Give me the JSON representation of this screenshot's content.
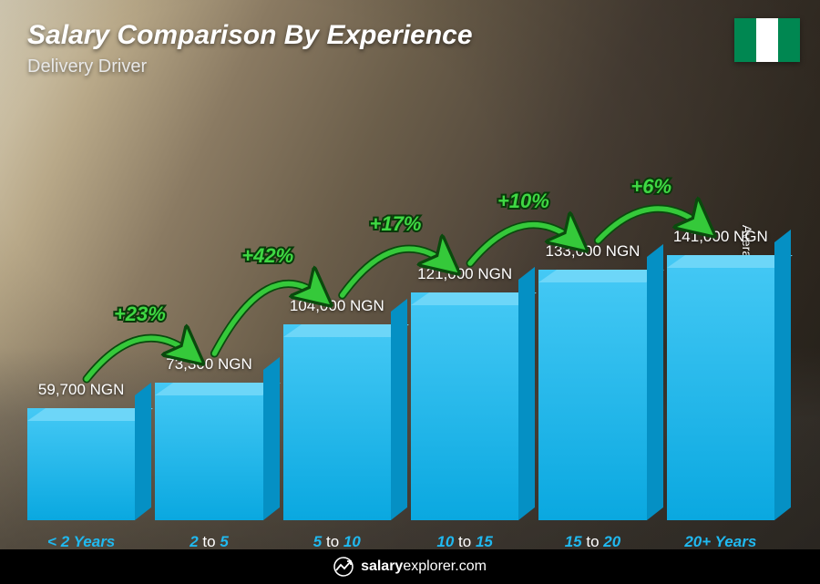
{
  "title": "Salary Comparison By Experience",
  "subtitle": "Delivery Driver",
  "yaxis_label": "Average Monthly Salary",
  "flag_colors": [
    "#008751",
    "#ffffff",
    "#008751"
  ],
  "currency": "NGN",
  "max_value": 150000,
  "bar_colors": {
    "front_top": "#45c9f5",
    "front_bottom": "#0aa8e0",
    "top": "#6dd6f8",
    "side": "#0590c4"
  },
  "arc_color": "#35c93a",
  "arc_stroke_dark": "#0a4a0d",
  "pct_color": "#3fd843",
  "xlabel_color": "#20b9f0",
  "bars": [
    {
      "label_pre": "< 2",
      "label_post": "Years",
      "value": 59700,
      "value_label": "59,700 NGN",
      "pct": null
    },
    {
      "label_pre": "2",
      "label_mid": "to",
      "label_post": "5",
      "value": 73300,
      "value_label": "73,300 NGN",
      "pct": "+23%"
    },
    {
      "label_pre": "5",
      "label_mid": "to",
      "label_post": "10",
      "value": 104000,
      "value_label": "104,000 NGN",
      "pct": "+42%"
    },
    {
      "label_pre": "10",
      "label_mid": "to",
      "label_post": "15",
      "value": 121000,
      "value_label": "121,000 NGN",
      "pct": "+17%"
    },
    {
      "label_pre": "15",
      "label_mid": "to",
      "label_post": "20",
      "value": 133000,
      "value_label": "133,000 NGN",
      "pct": "+10%"
    },
    {
      "label_pre": "20+",
      "label_post": "Years",
      "value": 141000,
      "value_label": "141,000 NGN",
      "pct": "+6%"
    }
  ],
  "footer": {
    "brand_bold": "salary",
    "brand_rest": "explorer.com"
  }
}
